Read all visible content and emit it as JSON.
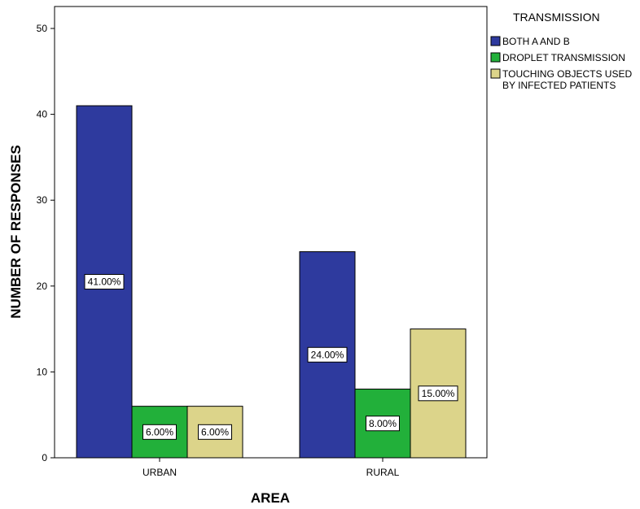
{
  "chart_data": {
    "type": "bar",
    "xlabel": "AREA",
    "ylabel": "NUMBER OF RESPONSES",
    "categories": [
      "URBAN",
      "RURAL"
    ],
    "ylim": [
      0,
      50
    ],
    "yticks": [
      0,
      10,
      20,
      30,
      40,
      50
    ],
    "grid": false,
    "legend_position": "top-right",
    "legend_title": "TRANSMISSION",
    "series": [
      {
        "name": "BOTH A AND B",
        "color": "#2e3a9e",
        "values": [
          41,
          24
        ],
        "labels": [
          "41.00%",
          "24.00%"
        ]
      },
      {
        "name": "DROPLET TRANSMISSION",
        "color": "#22b03a",
        "values": [
          6,
          8
        ],
        "labels": [
          "6.00%",
          "8.00%"
        ]
      },
      {
        "name": "TOUCHING OBJECTS USED BY INFECTED PATIENTS",
        "name_lines": [
          "TOUCHING OBJECTS USED",
          "BY INFECTED PATIENTS"
        ],
        "color": "#dcd48a",
        "values": [
          6,
          15
        ],
        "labels": [
          "6.00%",
          "15.00%"
        ]
      }
    ]
  }
}
